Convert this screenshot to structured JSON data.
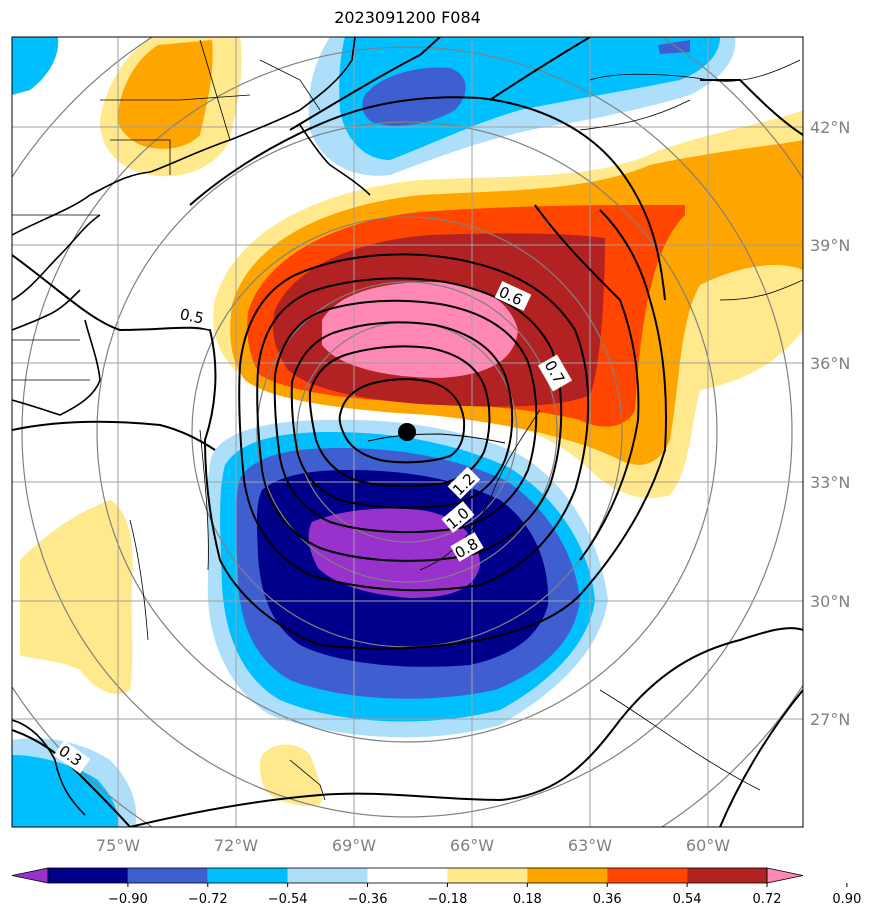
{
  "title": "2023091200 F084",
  "lat_labels": [
    "42°N",
    "39°N",
    "36°N",
    "33°N",
    "30°N",
    "27°N"
  ],
  "lon_labels": [
    "75°W",
    "72°W",
    "69°W",
    "66°W",
    "63°W",
    "60°W"
  ],
  "colorbar": {
    "ticks": [
      "−0.90",
      "−0.72",
      "−0.54",
      "−0.36",
      "−0.18",
      "0.18",
      "0.36",
      "0.54",
      "0.72",
      "0.90"
    ],
    "colors": [
      "#9932CC",
      "#00008B",
      "#3F5FD0",
      "#00BFFF",
      "#ADDFFA",
      "#FFFFFF",
      "#FFE98C",
      "#FFA500",
      "#FF4500",
      "#B22222",
      "#FF88B4"
    ]
  },
  "contour_labels": [
    "0.5",
    "0.6",
    "0.7",
    "1.2",
    "1.0",
    "0.8",
    "0.3"
  ],
  "colors": {
    "grid": "#a0a0a0",
    "range_ring": "#808080",
    "contour": "#000000"
  }
}
